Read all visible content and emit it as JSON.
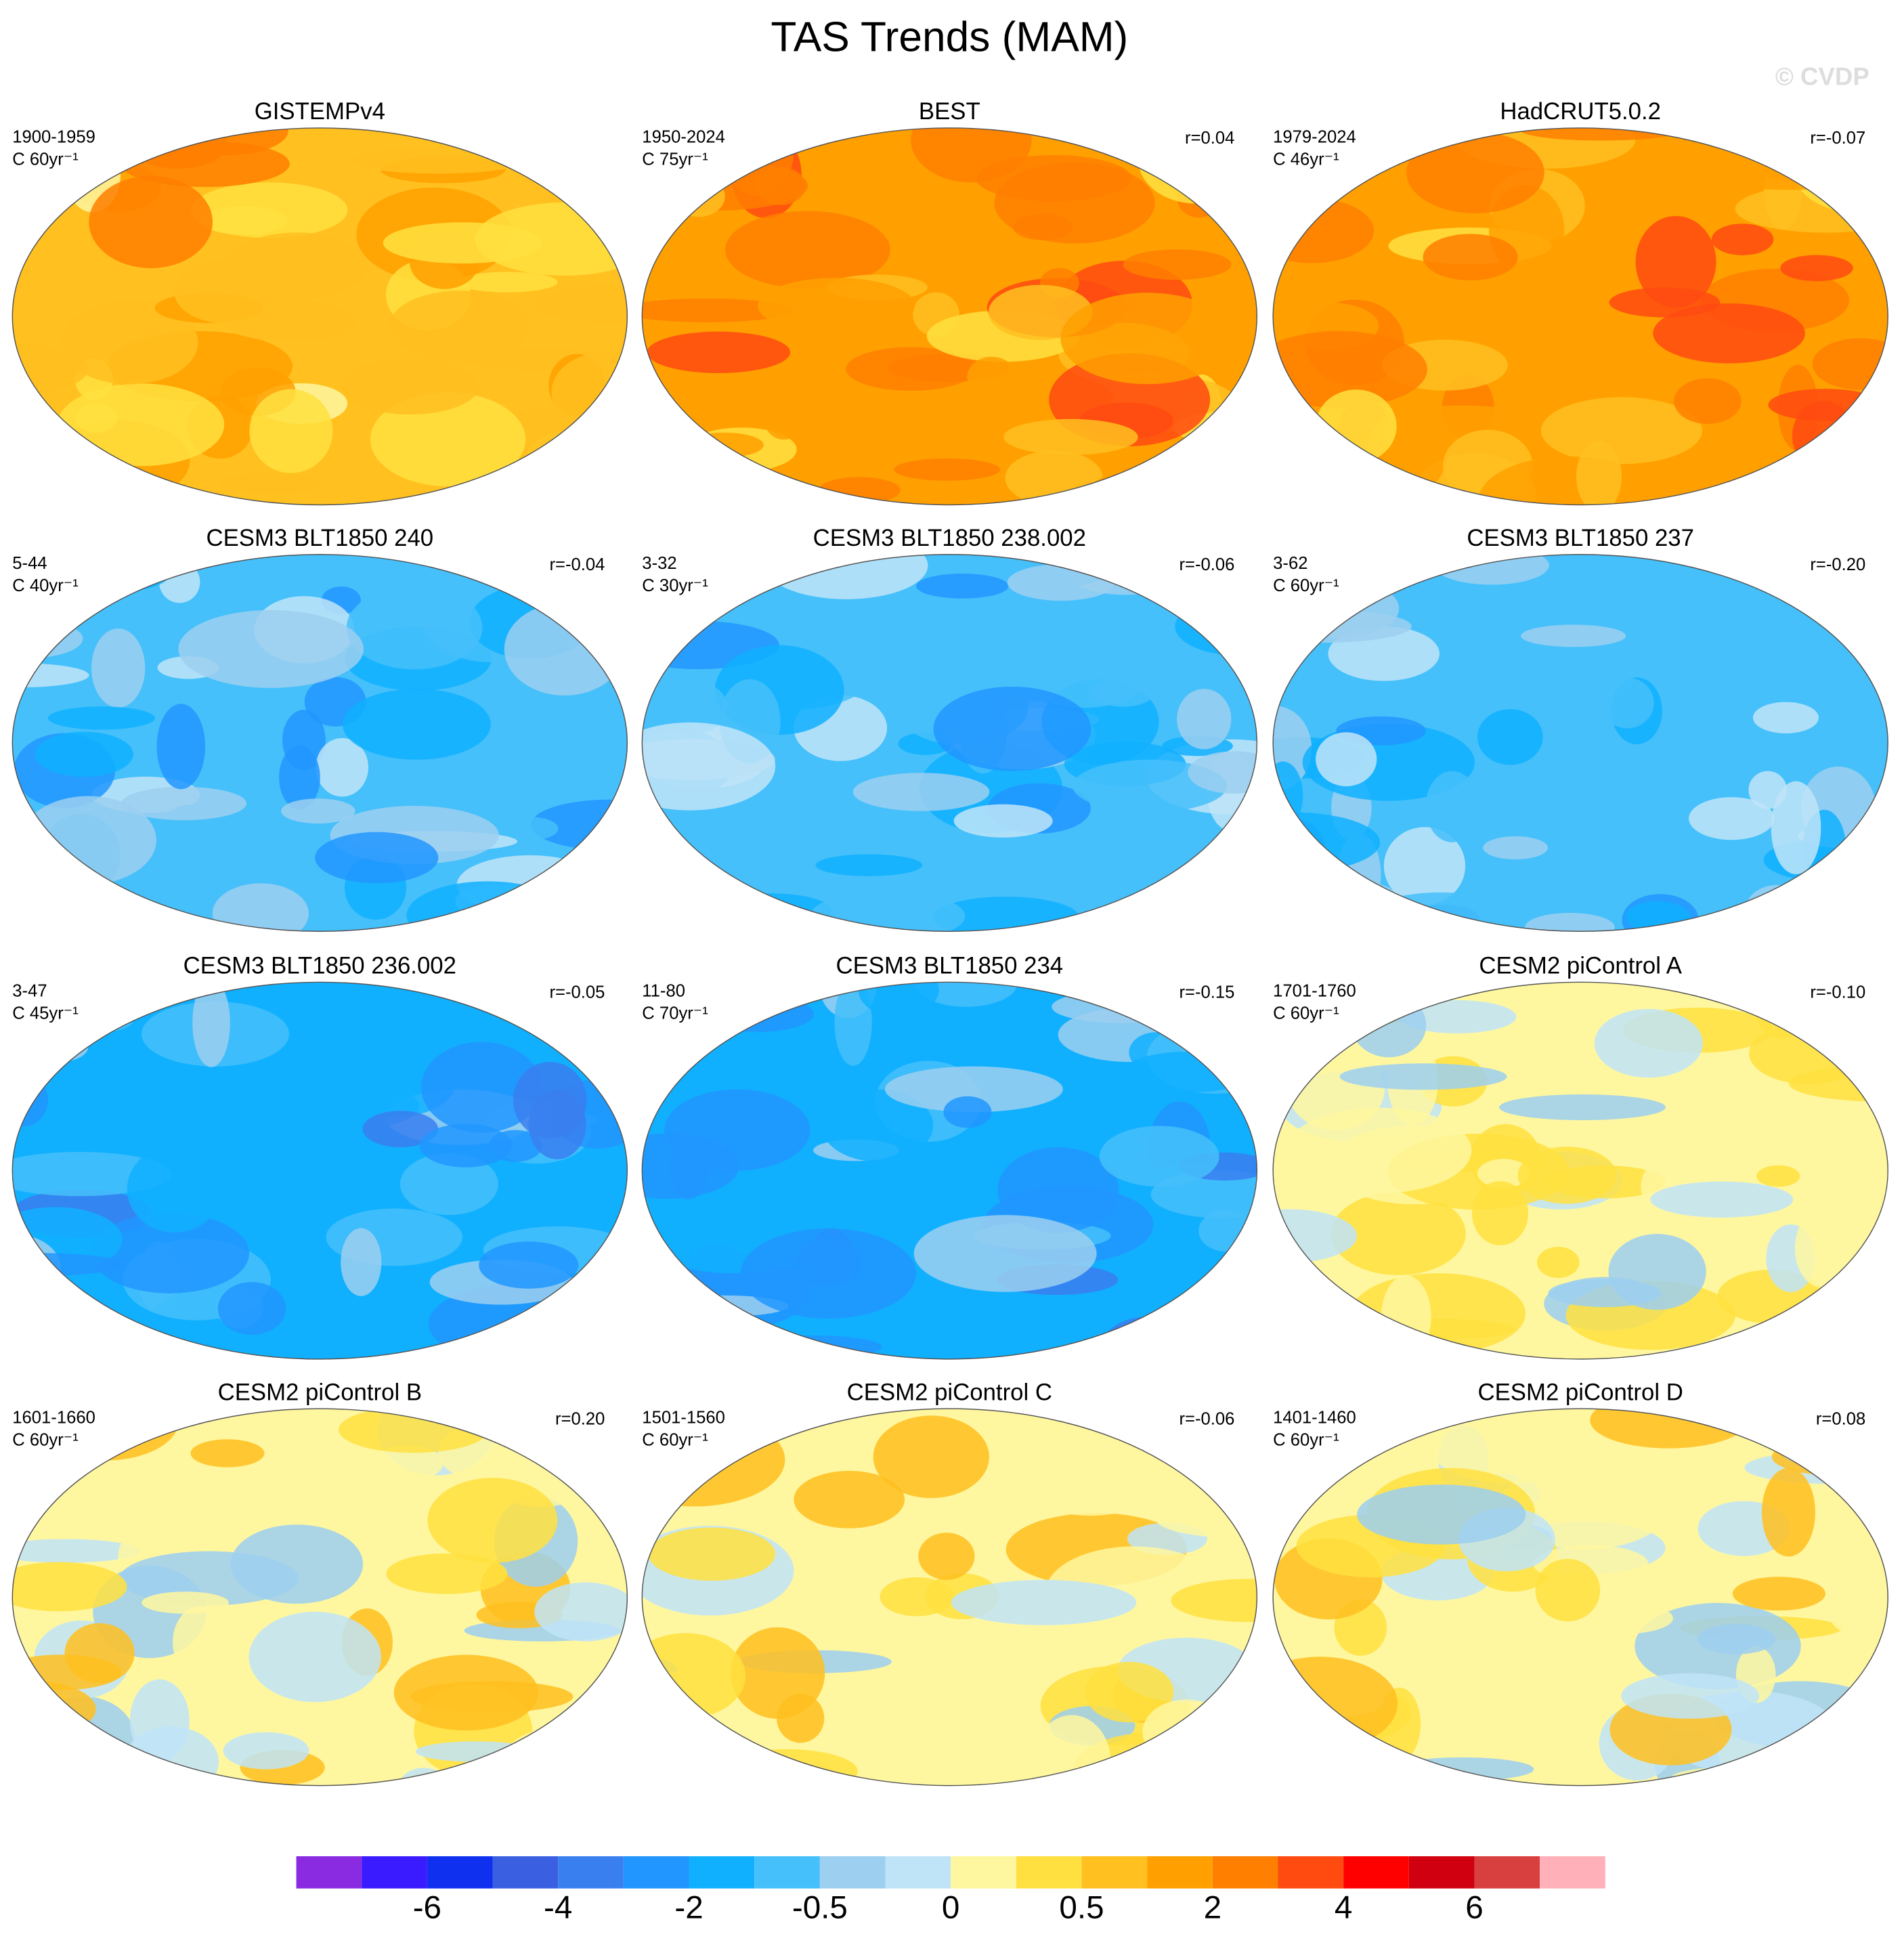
{
  "title": "TAS Trends (MAM)",
  "watermark": "© CVDP",
  "panels": [
    {
      "title": "GISTEMPv4",
      "period": "1900-1959",
      "units": "C 60yr⁻¹"
    },
    {
      "title": "BEST",
      "period": "1950-2024",
      "units": "C 75yr⁻¹",
      "r": "r=0.04"
    },
    {
      "title": "HadCRUT5.0.2",
      "period": "1979-2024",
      "units": "C 46yr⁻¹",
      "r": "r=-0.07"
    },
    {
      "title": "CESM3 BLT1850 240",
      "period": "5-44",
      "units": "C 40yr⁻¹",
      "r": "r=-0.04"
    },
    {
      "title": "CESM3 BLT1850 238.002",
      "period": "3-32",
      "units": "C 30yr⁻¹",
      "r": "r=-0.06"
    },
    {
      "title": "CESM3 BLT1850 237",
      "period": "3-62",
      "units": "C 60yr⁻¹",
      "r": "r=-0.20"
    },
    {
      "title": "CESM3 BLT1850 236.002",
      "period": "3-47",
      "units": "C 45yr⁻¹",
      "r": "r=-0.05"
    },
    {
      "title": "CESM3 BLT1850 234",
      "period": "11-80",
      "units": "C 70yr⁻¹",
      "r": "r=-0.15"
    },
    {
      "title": "CESM2 piControl A",
      "period": "1701-1760",
      "units": "C 60yr⁻¹",
      "r": "r=-0.10"
    },
    {
      "title": "CESM2 piControl B",
      "period": "1601-1660",
      "units": "C 60yr⁻¹",
      "r": "r=0.20"
    },
    {
      "title": "CESM2 piControl C",
      "period": "1501-1560",
      "units": "C 60yr⁻¹",
      "r": "r=-0.06"
    },
    {
      "title": "CESM2 piControl D",
      "period": "1401-1460",
      "units": "C 60yr⁻¹",
      "r": "r=0.08"
    }
  ],
  "colorbar": {
    "colors": [
      "#8a2be2",
      "#3a1aff",
      "#1030f0",
      "#3a5fe0",
      "#3a7ff0",
      "#2196ff",
      "#10b0ff",
      "#45c0fa",
      "#9ccff0",
      "#bfe4f8",
      "#fff7a0",
      "#ffe040",
      "#ffc020",
      "#ffa000",
      "#ff7f00",
      "#ff4a10",
      "#ff0000",
      "#d00010",
      "#d84040",
      "#ffb0b8"
    ],
    "labels": [
      -6,
      -4,
      -2,
      -0.5,
      0,
      0.5,
      2,
      4,
      6
    ]
  }
}
